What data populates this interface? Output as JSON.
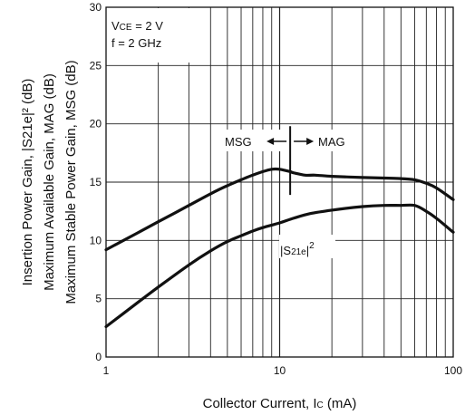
{
  "chart_data": {
    "type": "line",
    "xscale": "log",
    "xlim": [
      1,
      100
    ],
    "ylim": [
      0,
      30
    ],
    "grid": true,
    "xlabel": "Collector Current, Ic (mA)",
    "xlabel_main": "Collector Current, I",
    "xlabel_sub": "C",
    "xlabel_unit": " (mA)",
    "ylabel_lines": [
      "Insertion Power Gain, |S21e|² (dB)",
      "Maximum Available Gain, MAG (dB)",
      "Maximum Stable Power Gain, MSG (dB)"
    ],
    "x_ticks": [
      1,
      10,
      100
    ],
    "x_tick_labels": [
      "1",
      "10",
      "100"
    ],
    "y_ticks": [
      0,
      5,
      10,
      15,
      20,
      25,
      30
    ],
    "y_tick_labels": [
      "0",
      "5",
      "10",
      "15",
      "20",
      "25",
      "30"
    ],
    "conditions": {
      "vce_main": "V",
      "vce_sub": "CE",
      "vce_value": " = 2 V",
      "freq": "f = 2 GHz"
    },
    "annotations": {
      "msg": "MSG",
      "mag": "MAG",
      "boundary_x": 11.5,
      "boundary_y": [
        13.9,
        19.8
      ],
      "s21_label_main": "|S",
      "s21_label_sub": "21e",
      "s21_label_end": "|",
      "s21_label_sup": "2"
    },
    "series": [
      {
        "id": "msg_mag",
        "x": [
          1,
          1.5,
          2,
          3,
          4,
          5,
          6,
          7,
          8,
          9,
          10,
          11.5,
          12,
          14,
          16,
          20,
          30,
          40,
          50,
          60,
          70,
          80,
          100
        ],
        "y": [
          9.2,
          10.6,
          11.6,
          13.0,
          14.0,
          14.7,
          15.2,
          15.6,
          15.9,
          16.1,
          16.1,
          15.9,
          15.8,
          15.6,
          15.6,
          15.5,
          15.4,
          15.35,
          15.3,
          15.2,
          14.9,
          14.5,
          13.5
        ]
      },
      {
        "id": "s21",
        "x": [
          1,
          1.5,
          2,
          3,
          4,
          5,
          6,
          7,
          8,
          10,
          12,
          15,
          20,
          30,
          40,
          50,
          60,
          70,
          80,
          100
        ],
        "y": [
          2.6,
          4.6,
          6.0,
          7.9,
          9.1,
          9.9,
          10.4,
          10.8,
          11.1,
          11.5,
          11.9,
          12.3,
          12.6,
          12.9,
          13.0,
          13.0,
          13.0,
          12.5,
          11.9,
          10.7
        ]
      }
    ]
  }
}
